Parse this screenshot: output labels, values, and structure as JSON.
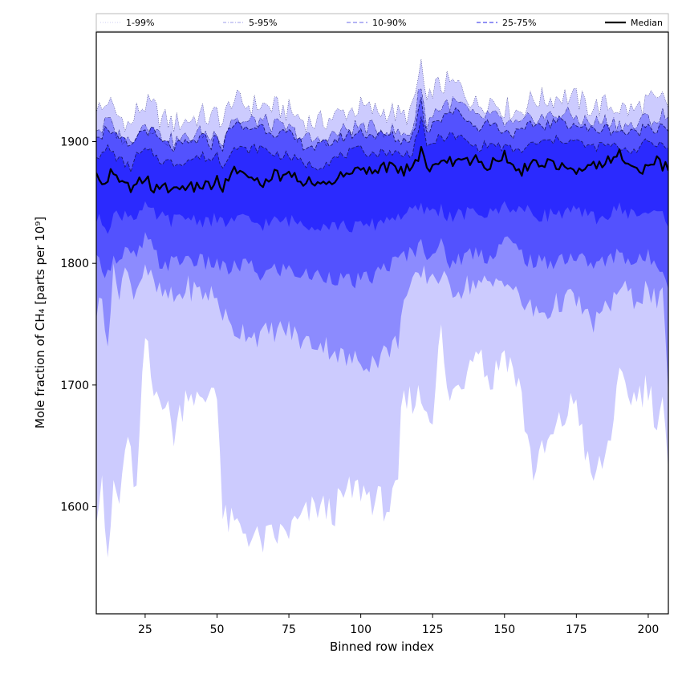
{
  "chart_data": {
    "type": "area",
    "xlabel": "Binned row index",
    "ylabel": "Mole fraction of CH₄ [parts per 10⁹]",
    "xlim": [
      8,
      207
    ],
    "ylim": [
      1512,
      1990
    ],
    "x_ticks": [
      25,
      50,
      75,
      100,
      125,
      150,
      175,
      200
    ],
    "y_ticks": [
      1600,
      1700,
      1800,
      1900
    ],
    "grid": false,
    "legend_position": "top, above plot",
    "legend": [
      {
        "label": "1-99%",
        "style": "dotted",
        "color": "#d6d6f5"
      },
      {
        "label": "5-95%",
        "style": "dashdot",
        "color": "#b0b0ee"
      },
      {
        "label": "10-90%",
        "style": "dashed",
        "color": "#8888ee"
      },
      {
        "label": "25-75%",
        "style": "dashed",
        "color": "#5050ee"
      },
      {
        "label": "Median",
        "style": "solid",
        "color": "#000000"
      }
    ],
    "x_anchor": [
      8,
      10,
      12,
      14,
      16,
      18,
      20,
      22,
      25,
      28,
      30,
      35,
      40,
      45,
      48,
      50,
      52,
      55,
      60,
      65,
      70,
      75,
      80,
      85,
      90,
      95,
      100,
      105,
      110,
      113,
      114,
      118,
      121,
      123,
      125,
      128,
      130,
      135,
      140,
      145,
      150,
      155,
      160,
      165,
      170,
      175,
      180,
      185,
      190,
      195,
      200,
      203,
      205,
      207
    ],
    "bands": [
      {
        "name": "1-99%",
        "color": "#cccbfe",
        "upper": [
          1930,
          1925,
          1935,
          1925,
          1920,
          1918,
          1912,
          1925,
          1930,
          1928,
          1920,
          1915,
          1918,
          1922,
          1918,
          1925,
          1915,
          1935,
          1930,
          1930,
          1928,
          1925,
          1918,
          1915,
          1920,
          1925,
          1928,
          1925,
          1925,
          1922,
          1920,
          1925,
          1965,
          1925,
          1945,
          1945,
          1948,
          1945,
          1930,
          1935,
          1928,
          1925,
          1935,
          1935,
          1938,
          1935,
          1928,
          1930,
          1928,
          1925,
          1935,
          1930,
          1935,
          1930
        ],
        "lower": [
          1600,
          1630,
          1545,
          1620,
          1600,
          1650,
          1640,
          1610,
          1740,
          1690,
          1700,
          1660,
          1700,
          1680,
          1700,
          1700,
          1590,
          1585,
          1580,
          1570,
          1575,
          1580,
          1590,
          1600,
          1595,
          1610,
          1615,
          1605,
          1600,
          1610,
          1680,
          1690,
          1690,
          1680,
          1680,
          1745,
          1690,
          1700,
          1740,
          1700,
          1730,
          1700,
          1630,
          1650,
          1670,
          1690,
          1620,
          1640,
          1700,
          1690,
          1700,
          1670,
          1690,
          1620
        ]
      },
      {
        "name": "5-95%",
        "color": "#8c8bfe",
        "upper": [
          1912,
          1910,
          1918,
          1910,
          1905,
          1903,
          1898,
          1910,
          1915,
          1912,
          1905,
          1900,
          1903,
          1908,
          1903,
          1910,
          1900,
          1920,
          1915,
          1918,
          1913,
          1910,
          1903,
          1900,
          1905,
          1910,
          1913,
          1910,
          1910,
          1907,
          1905,
          1910,
          1950,
          1910,
          1925,
          1928,
          1932,
          1930,
          1918,
          1922,
          1915,
          1912,
          1920,
          1920,
          1923,
          1920,
          1915,
          1917,
          1915,
          1912,
          1920,
          1917,
          1922,
          1917
        ],
        "lower": [
          1760,
          1770,
          1740,
          1790,
          1780,
          1795,
          1780,
          1780,
          1800,
          1780,
          1775,
          1770,
          1780,
          1775,
          1775,
          1770,
          1760,
          1745,
          1745,
          1740,
          1745,
          1745,
          1735,
          1735,
          1730,
          1720,
          1720,
          1720,
          1730,
          1735,
          1765,
          1780,
          1790,
          1790,
          1790,
          1790,
          1780,
          1780,
          1785,
          1780,
          1790,
          1770,
          1760,
          1760,
          1770,
          1770,
          1750,
          1760,
          1780,
          1770,
          1780,
          1765,
          1770,
          1700
        ]
      },
      {
        "name": "10-90%",
        "color": "#5352fe",
        "upper": [
          1908,
          1906,
          1913,
          1906,
          1900,
          1899,
          1893,
          1905,
          1910,
          1907,
          1900,
          1895,
          1898,
          1903,
          1898,
          1905,
          1895,
          1915,
          1910,
          1913,
          1908,
          1905,
          1898,
          1895,
          1900,
          1905,
          1908,
          1905,
          1905,
          1902,
          1900,
          1905,
          1935,
          1905,
          1918,
          1920,
          1925,
          1923,
          1912,
          1916,
          1909,
          1906,
          1914,
          1914,
          1917,
          1914,
          1909,
          1911,
          1909,
          1906,
          1914,
          1911,
          1916,
          1911
        ],
        "lower": [
          1800,
          1800,
          1790,
          1810,
          1800,
          1810,
          1805,
          1805,
          1820,
          1810,
          1800,
          1800,
          1805,
          1800,
          1800,
          1800,
          1795,
          1795,
          1800,
          1790,
          1795,
          1795,
          1790,
          1790,
          1790,
          1785,
          1785,
          1790,
          1800,
          1800,
          1805,
          1810,
          1815,
          1810,
          1810,
          1815,
          1800,
          1805,
          1810,
          1805,
          1820,
          1810,
          1800,
          1800,
          1805,
          1805,
          1800,
          1800,
          1810,
          1800,
          1805,
          1800,
          1800,
          1780
        ]
      },
      {
        "name": "25-75%",
        "color": "#2b2afe",
        "upper": [
          1890,
          1888,
          1895,
          1890,
          1885,
          1882,
          1878,
          1888,
          1892,
          1890,
          1885,
          1882,
          1885,
          1888,
          1885,
          1890,
          1880,
          1895,
          1893,
          1895,
          1890,
          1888,
          1882,
          1880,
          1885,
          1890,
          1893,
          1890,
          1892,
          1890,
          1888,
          1892,
          1920,
          1893,
          1900,
          1903,
          1905,
          1903,
          1895,
          1898,
          1895,
          1892,
          1898,
          1900,
          1902,
          1900,
          1895,
          1897,
          1895,
          1893,
          1900,
          1897,
          1900,
          1897
        ],
        "lower": [
          1835,
          1835,
          1830,
          1840,
          1838,
          1842,
          1840,
          1840,
          1845,
          1840,
          1838,
          1835,
          1838,
          1835,
          1836,
          1835,
          1833,
          1835,
          1836,
          1832,
          1834,
          1835,
          1833,
          1832,
          1832,
          1830,
          1830,
          1832,
          1838,
          1838,
          1840,
          1842,
          1845,
          1843,
          1843,
          1845,
          1838,
          1840,
          1842,
          1840,
          1848,
          1845,
          1840,
          1840,
          1842,
          1842,
          1838,
          1838,
          1845,
          1840,
          1842,
          1840,
          1840,
          1835
        ]
      }
    ],
    "series": [
      {
        "name": "Median",
        "color": "#000000",
        "values": [
          1873,
          1860,
          1870,
          1875,
          1865,
          1870,
          1856,
          1866,
          1872,
          1858,
          1864,
          1860,
          1862,
          1866,
          1860,
          1872,
          1862,
          1878,
          1870,
          1866,
          1872,
          1872,
          1868,
          1866,
          1868,
          1872,
          1880,
          1876,
          1880,
          1878,
          1876,
          1878,
          1892,
          1878,
          1882,
          1884,
          1884,
          1882,
          1884,
          1880,
          1890,
          1874,
          1882,
          1884,
          1880,
          1878,
          1880,
          1884,
          1890,
          1876,
          1878,
          1886,
          1880,
          1878
        ]
      }
    ]
  }
}
